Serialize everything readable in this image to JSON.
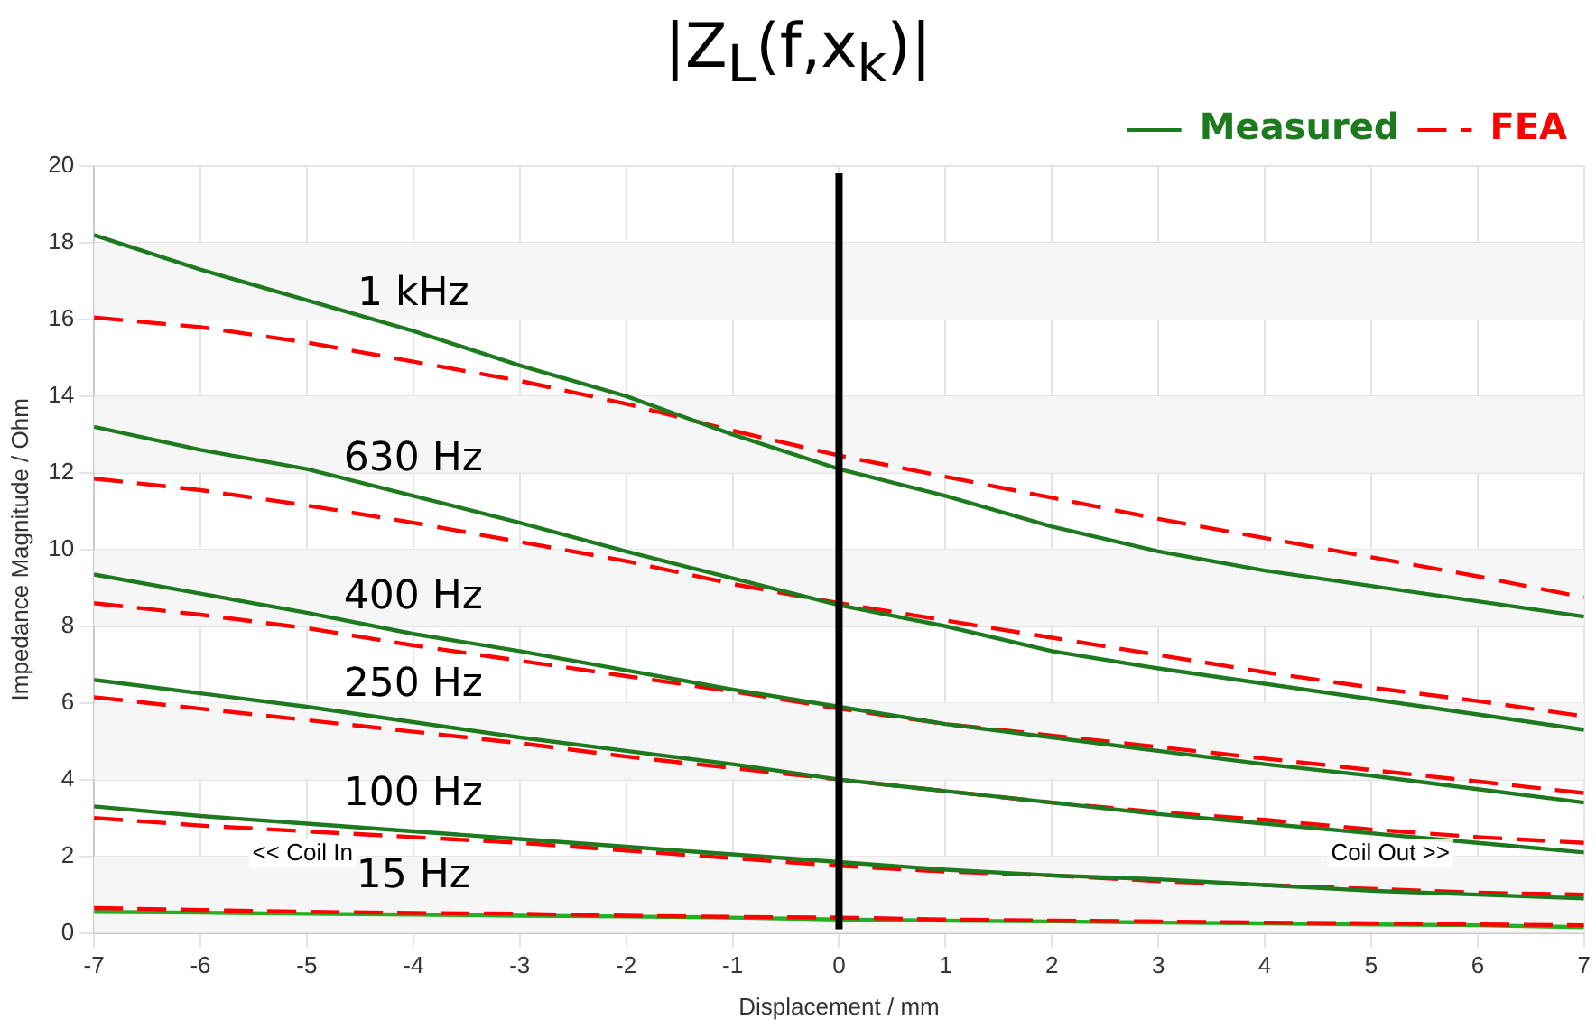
{
  "chart_data": {
    "type": "line",
    "title": "|Z$_{L}$(f,x$_{k}$)|",
    "xlabel": "Displacement / mm",
    "ylabel": "Impedance Magnitude / Ohm",
    "x": [
      -7,
      -6,
      -5,
      -4,
      -3,
      -2,
      -1,
      0,
      1,
      2,
      3,
      4,
      5,
      6,
      7
    ],
    "series": [
      {
        "name": "Measured",
        "color": "#1e7a1e",
        "line_style": "solid",
        "values": [
          18.2,
          17.3,
          16.5,
          15.7,
          14.8,
          14.0,
          13.0,
          12.1,
          11.4,
          10.6,
          9.95,
          9.45,
          9.05,
          8.65,
          8.25
        ]
      },
      {
        "name": "FEA",
        "color": "#ff0000",
        "line_style": "dashed",
        "values": [
          16.05,
          15.8,
          15.4,
          14.9,
          14.4,
          13.8,
          13.1,
          12.45,
          11.9,
          11.35,
          10.8,
          10.3,
          9.8,
          9.3,
          8.75
        ]
      },
      {
        "color": "#1e7a1e",
        "line_style": "solid",
        "values": [
          13.2,
          12.6,
          12.1,
          11.4,
          10.7,
          9.95,
          9.25,
          8.55,
          8.0,
          7.35,
          6.9,
          6.5,
          6.1,
          5.7,
          5.3
        ]
      },
      {
        "color": "#ff0000",
        "line_style": "dashed",
        "values": [
          11.85,
          11.55,
          11.15,
          10.7,
          10.2,
          9.7,
          9.1,
          8.6,
          8.15,
          7.7,
          7.25,
          6.8,
          6.4,
          6.05,
          5.65
        ]
      },
      {
        "color": "#1e7a1e",
        "line_style": "solid",
        "values": [
          9.35,
          8.85,
          8.35,
          7.8,
          7.35,
          6.85,
          6.35,
          5.9,
          5.45,
          5.1,
          4.75,
          4.4,
          4.1,
          3.75,
          3.4
        ]
      },
      {
        "color": "#ff0000",
        "line_style": "dashed",
        "values": [
          8.6,
          8.3,
          7.95,
          7.5,
          7.1,
          6.7,
          6.3,
          5.85,
          5.45,
          5.15,
          4.85,
          4.55,
          4.25,
          3.95,
          3.65
        ]
      },
      {
        "color": "#1e7a1e",
        "line_style": "solid",
        "values": [
          6.6,
          6.25,
          5.9,
          5.5,
          5.1,
          4.75,
          4.4,
          4.0,
          3.7,
          3.4,
          3.1,
          2.85,
          2.6,
          2.35,
          2.1
        ]
      },
      {
        "color": "#ff0000",
        "line_style": "dashed",
        "values": [
          6.15,
          5.85,
          5.55,
          5.25,
          4.95,
          4.6,
          4.3,
          4.0,
          3.7,
          3.4,
          3.15,
          2.95,
          2.7,
          2.5,
          2.35
        ]
      },
      {
        "color": "#1e7a1e",
        "line_style": "solid",
        "values": [
          3.3,
          3.05,
          2.85,
          2.65,
          2.45,
          2.25,
          2.05,
          1.85,
          1.65,
          1.5,
          1.4,
          1.25,
          1.1,
          1.0,
          0.9
        ]
      },
      {
        "color": "#ff0000",
        "line_style": "dashed",
        "values": [
          3.0,
          2.8,
          2.65,
          2.5,
          2.35,
          2.15,
          1.95,
          1.75,
          1.6,
          1.5,
          1.35,
          1.25,
          1.15,
          1.05,
          1.0
        ]
      },
      {
        "color": "#ff0000",
        "line_style": "dashed",
        "values": [
          0.65,
          0.6,
          0.55,
          0.52,
          0.5,
          0.45,
          0.42,
          0.4,
          0.35,
          0.32,
          0.3,
          0.27,
          0.25,
          0.22,
          0.2
        ]
      },
      {
        "color": "#22b022",
        "line_style": "solid",
        "values": [
          0.55,
          0.53,
          0.5,
          0.48,
          0.45,
          0.43,
          0.4,
          0.35,
          0.32,
          0.3,
          0.27,
          0.25,
          0.22,
          0.2,
          0.15
        ]
      }
    ],
    "xlim": [
      -7,
      7
    ],
    "xticks": [
      -7,
      -6,
      -5,
      -4,
      -3,
      -2,
      -1,
      0,
      1,
      2,
      3,
      4,
      5,
      6,
      7
    ],
    "ylim": [
      0,
      20
    ],
    "yticks": [
      0,
      2,
      4,
      6,
      8,
      10,
      12,
      14,
      16,
      18,
      20
    ],
    "grid": true,
    "legend": "top right",
    "marker": "none",
    "ref_lines": [
      {
        "axis": "x",
        "value": 0,
        "color": "#000000"
      }
    ],
    "bands": [
      {
        "axis": "y",
        "from": 0,
        "to": 2,
        "color": "#f6f6f6"
      },
      {
        "axis": "y",
        "from": 4,
        "to": 6,
        "color": "#f6f6f6"
      },
      {
        "axis": "y",
        "from": 8,
        "to": 10,
        "color": "#f6f6f6"
      },
      {
        "axis": "y",
        "from": 12,
        "to": 14,
        "color": "#f6f6f6"
      },
      {
        "axis": "y",
        "from": 16,
        "to": 18,
        "color": "#f6f6f6"
      }
    ],
    "annotations": [
      "1 kHz",
      "630 Hz",
      "400 Hz",
      "250 Hz",
      "100 Hz",
      "15 Hz",
      "<< Coil In",
      "Coil Out >>"
    ]
  }
}
